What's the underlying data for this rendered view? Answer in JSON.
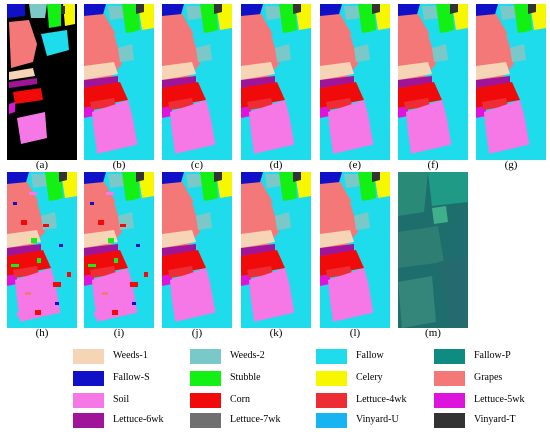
{
  "figure": {
    "panels": [
      {
        "caption": "(a)",
        "style": "gt"
      },
      {
        "caption": "(b)",
        "style": "map"
      },
      {
        "caption": "(c)",
        "style": "map"
      },
      {
        "caption": "(d)",
        "style": "map"
      },
      {
        "caption": "(e)",
        "style": "map"
      },
      {
        "caption": "(f)",
        "style": "map"
      },
      {
        "caption": "(g)",
        "style": "map"
      },
      {
        "caption": "(h)",
        "style": "noisy"
      },
      {
        "caption": "(i)",
        "style": "noisy"
      },
      {
        "caption": "(j)",
        "style": "map"
      },
      {
        "caption": "(k)",
        "style": "map"
      },
      {
        "caption": "(l)",
        "style": "map"
      },
      {
        "caption": "(m)",
        "style": "false-color"
      }
    ],
    "legend": [
      {
        "label": "Weeds-1",
        "color": "#F5D5B6"
      },
      {
        "label": "Weeds-2",
        "color": "#7BC8C8"
      },
      {
        "label": "Fallow",
        "color": "#1EDCEB"
      },
      {
        "label": "Fallow-P",
        "color": "#0E8C82"
      },
      {
        "label": "Fallow-S",
        "color": "#1010C8"
      },
      {
        "label": "Stubble",
        "color": "#12F014"
      },
      {
        "label": "Celery",
        "color": "#F7F700"
      },
      {
        "label": "Grapes",
        "color": "#F57878"
      },
      {
        "label": "Soil",
        "color": "#F578E6"
      },
      {
        "label": "Corn",
        "color": "#F00A0A"
      },
      {
        "label": "Lettuce-4wk",
        "color": "#EE2C33"
      },
      {
        "label": "Lettuce-5wk",
        "color": "#DC14DC"
      },
      {
        "label": "Lettuce-6wk",
        "color": "#A0149A"
      },
      {
        "label": "Lettuce-7wk",
        "color": "#707070"
      },
      {
        "label": "Vinyard-U",
        "color": "#18B4F2"
      },
      {
        "label": "Vinyard-T",
        "color": "#333333"
      }
    ]
  }
}
